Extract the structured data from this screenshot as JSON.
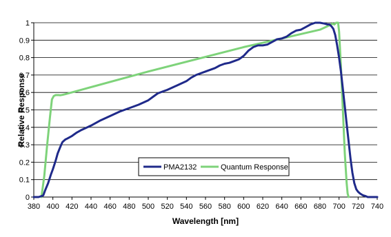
{
  "chart_data": {
    "type": "line",
    "title": "",
    "xlabel": "Wavelength [nm]",
    "ylabel": "Relative Response",
    "xlim": [
      380,
      740
    ],
    "ylim": [
      0,
      1
    ],
    "x_ticks": [
      "380",
      "400",
      "420",
      "440",
      "460",
      "480",
      "500",
      "520",
      "540",
      "560",
      "580",
      "600",
      "620",
      "640",
      "660",
      "680",
      "700",
      "720",
      "740"
    ],
    "y_ticks": [
      "0",
      "0.1",
      "0.2",
      "0.3",
      "0.4",
      "0.5",
      "0.6",
      "0.7",
      "0.8",
      "0.9",
      "1"
    ],
    "grid": "horizontal",
    "legend_position": "bottom-center",
    "series": [
      {
        "name": "PMA2132",
        "color": "#1f2a8a",
        "x": [
          380,
          385,
          388,
          390,
          392,
          395,
          398,
          400,
          403,
          405,
          408,
          410,
          413,
          415,
          420,
          425,
          430,
          440,
          450,
          460,
          470,
          480,
          490,
          500,
          505,
          510,
          515,
          520,
          530,
          540,
          545,
          550,
          560,
          570,
          575,
          580,
          585,
          590,
          595,
          600,
          605,
          610,
          615,
          620,
          625,
          630,
          635,
          640,
          645,
          650,
          655,
          660,
          665,
          670,
          675,
          680,
          685,
          688,
          690,
          692,
          694,
          696,
          698,
          700,
          702,
          704,
          706,
          708,
          710,
          712,
          714,
          716,
          718,
          720,
          722,
          725,
          728,
          730,
          735,
          740
        ],
        "y": [
          0.0,
          0.0,
          0.005,
          0.01,
          0.04,
          0.08,
          0.13,
          0.16,
          0.21,
          0.25,
          0.29,
          0.315,
          0.33,
          0.335,
          0.35,
          0.37,
          0.385,
          0.41,
          0.44,
          0.465,
          0.49,
          0.51,
          0.53,
          0.555,
          0.575,
          0.595,
          0.605,
          0.615,
          0.64,
          0.665,
          0.685,
          0.7,
          0.72,
          0.74,
          0.755,
          0.765,
          0.77,
          0.78,
          0.79,
          0.81,
          0.84,
          0.86,
          0.87,
          0.87,
          0.875,
          0.89,
          0.905,
          0.91,
          0.92,
          0.94,
          0.955,
          0.96,
          0.975,
          0.99,
          1.0,
          1.0,
          0.995,
          0.99,
          0.99,
          0.98,
          0.965,
          0.93,
          0.87,
          0.8,
          0.72,
          0.62,
          0.52,
          0.42,
          0.32,
          0.22,
          0.14,
          0.08,
          0.045,
          0.03,
          0.02,
          0.01,
          0.005,
          0.0,
          0.0,
          0.0
        ]
      },
      {
        "name": "Quantum Response",
        "color": "#7ed37a",
        "x": [
          388,
          391,
          394,
          397,
          399,
          401,
          403,
          406,
          408,
          410,
          413,
          500,
          600,
          640,
          680,
          690,
          693,
          695,
          697,
          699,
          700,
          702,
          704,
          706,
          708,
          709,
          710
        ],
        "y": [
          0.0,
          0.12,
          0.3,
          0.46,
          0.56,
          0.58,
          0.585,
          0.585,
          0.584,
          0.586,
          0.59,
          0.72,
          0.86,
          0.91,
          0.96,
          0.985,
          0.995,
          0.99,
          1.0,
          1.0,
          0.95,
          0.75,
          0.5,
          0.25,
          0.08,
          0.02,
          0.0
        ]
      }
    ]
  }
}
